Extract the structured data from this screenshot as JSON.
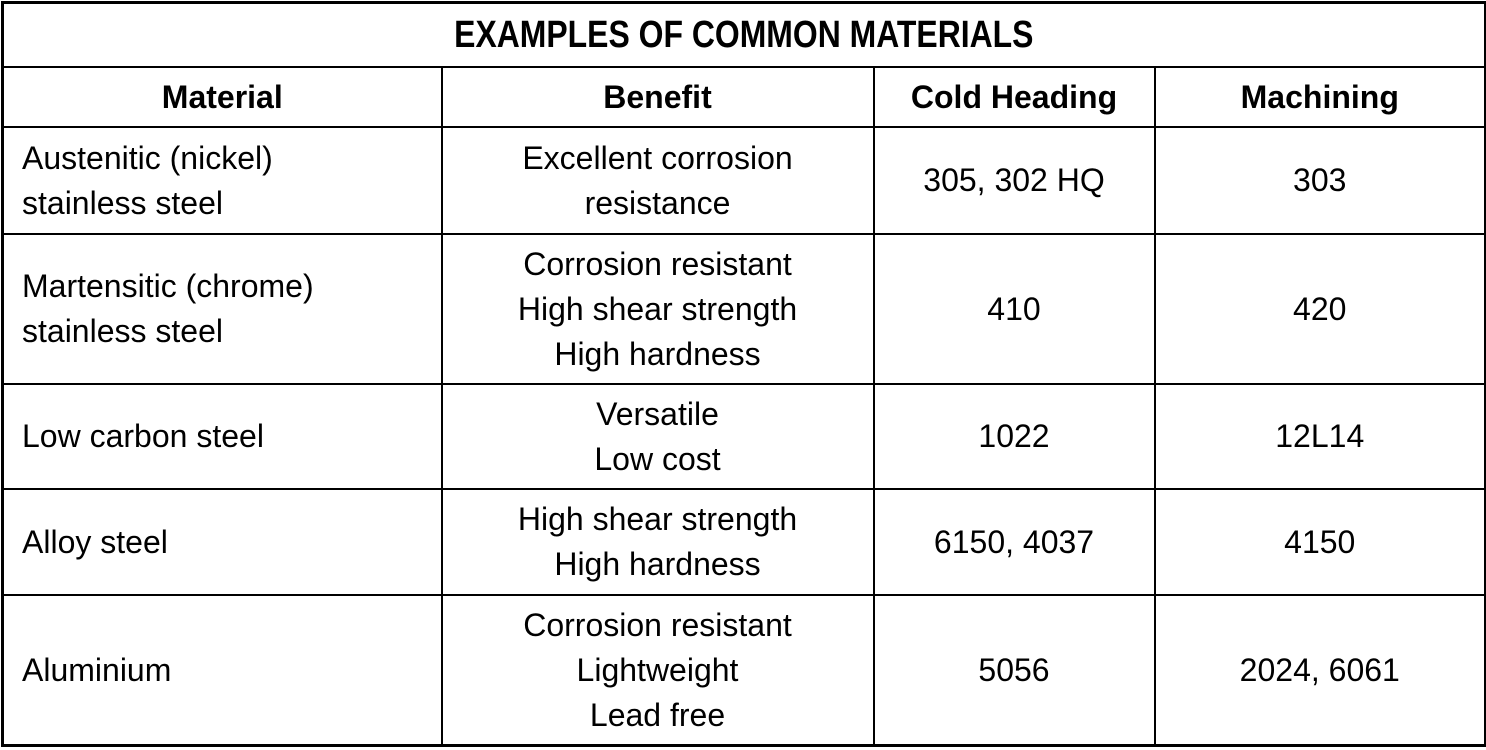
{
  "table": {
    "title": "EXAMPLES OF COMMON MATERIALS",
    "headers": [
      "Material",
      "Benefit",
      "Cold Heading",
      "Machining"
    ],
    "rows": [
      [
        [
          "Austenitic (nickel)",
          "stainless steel"
        ],
        [
          "Excellent corrosion",
          "resistance"
        ],
        [
          "305, 302 HQ"
        ],
        [
          "303"
        ]
      ],
      [
        [
          "Martensitic (chrome)",
          "stainless steel"
        ],
        [
          "Corrosion resistant",
          "High shear strength",
          "High hardness"
        ],
        [
          "410"
        ],
        [
          "420"
        ]
      ],
      [
        [
          "Low carbon steel"
        ],
        [
          "Versatile",
          "Low cost"
        ],
        [
          "1022"
        ],
        [
          "12L14"
        ]
      ],
      [
        [
          "Alloy steel"
        ],
        [
          "High shear strength",
          "High hardness"
        ],
        [
          "6150, 4037"
        ],
        [
          "4150"
        ]
      ],
      [
        [
          "Aluminium"
        ],
        [
          "Corrosion resistant",
          "Lightweight",
          "Lead free"
        ],
        [
          "5056"
        ],
        [
          "2024, 6061"
        ]
      ]
    ]
  }
}
